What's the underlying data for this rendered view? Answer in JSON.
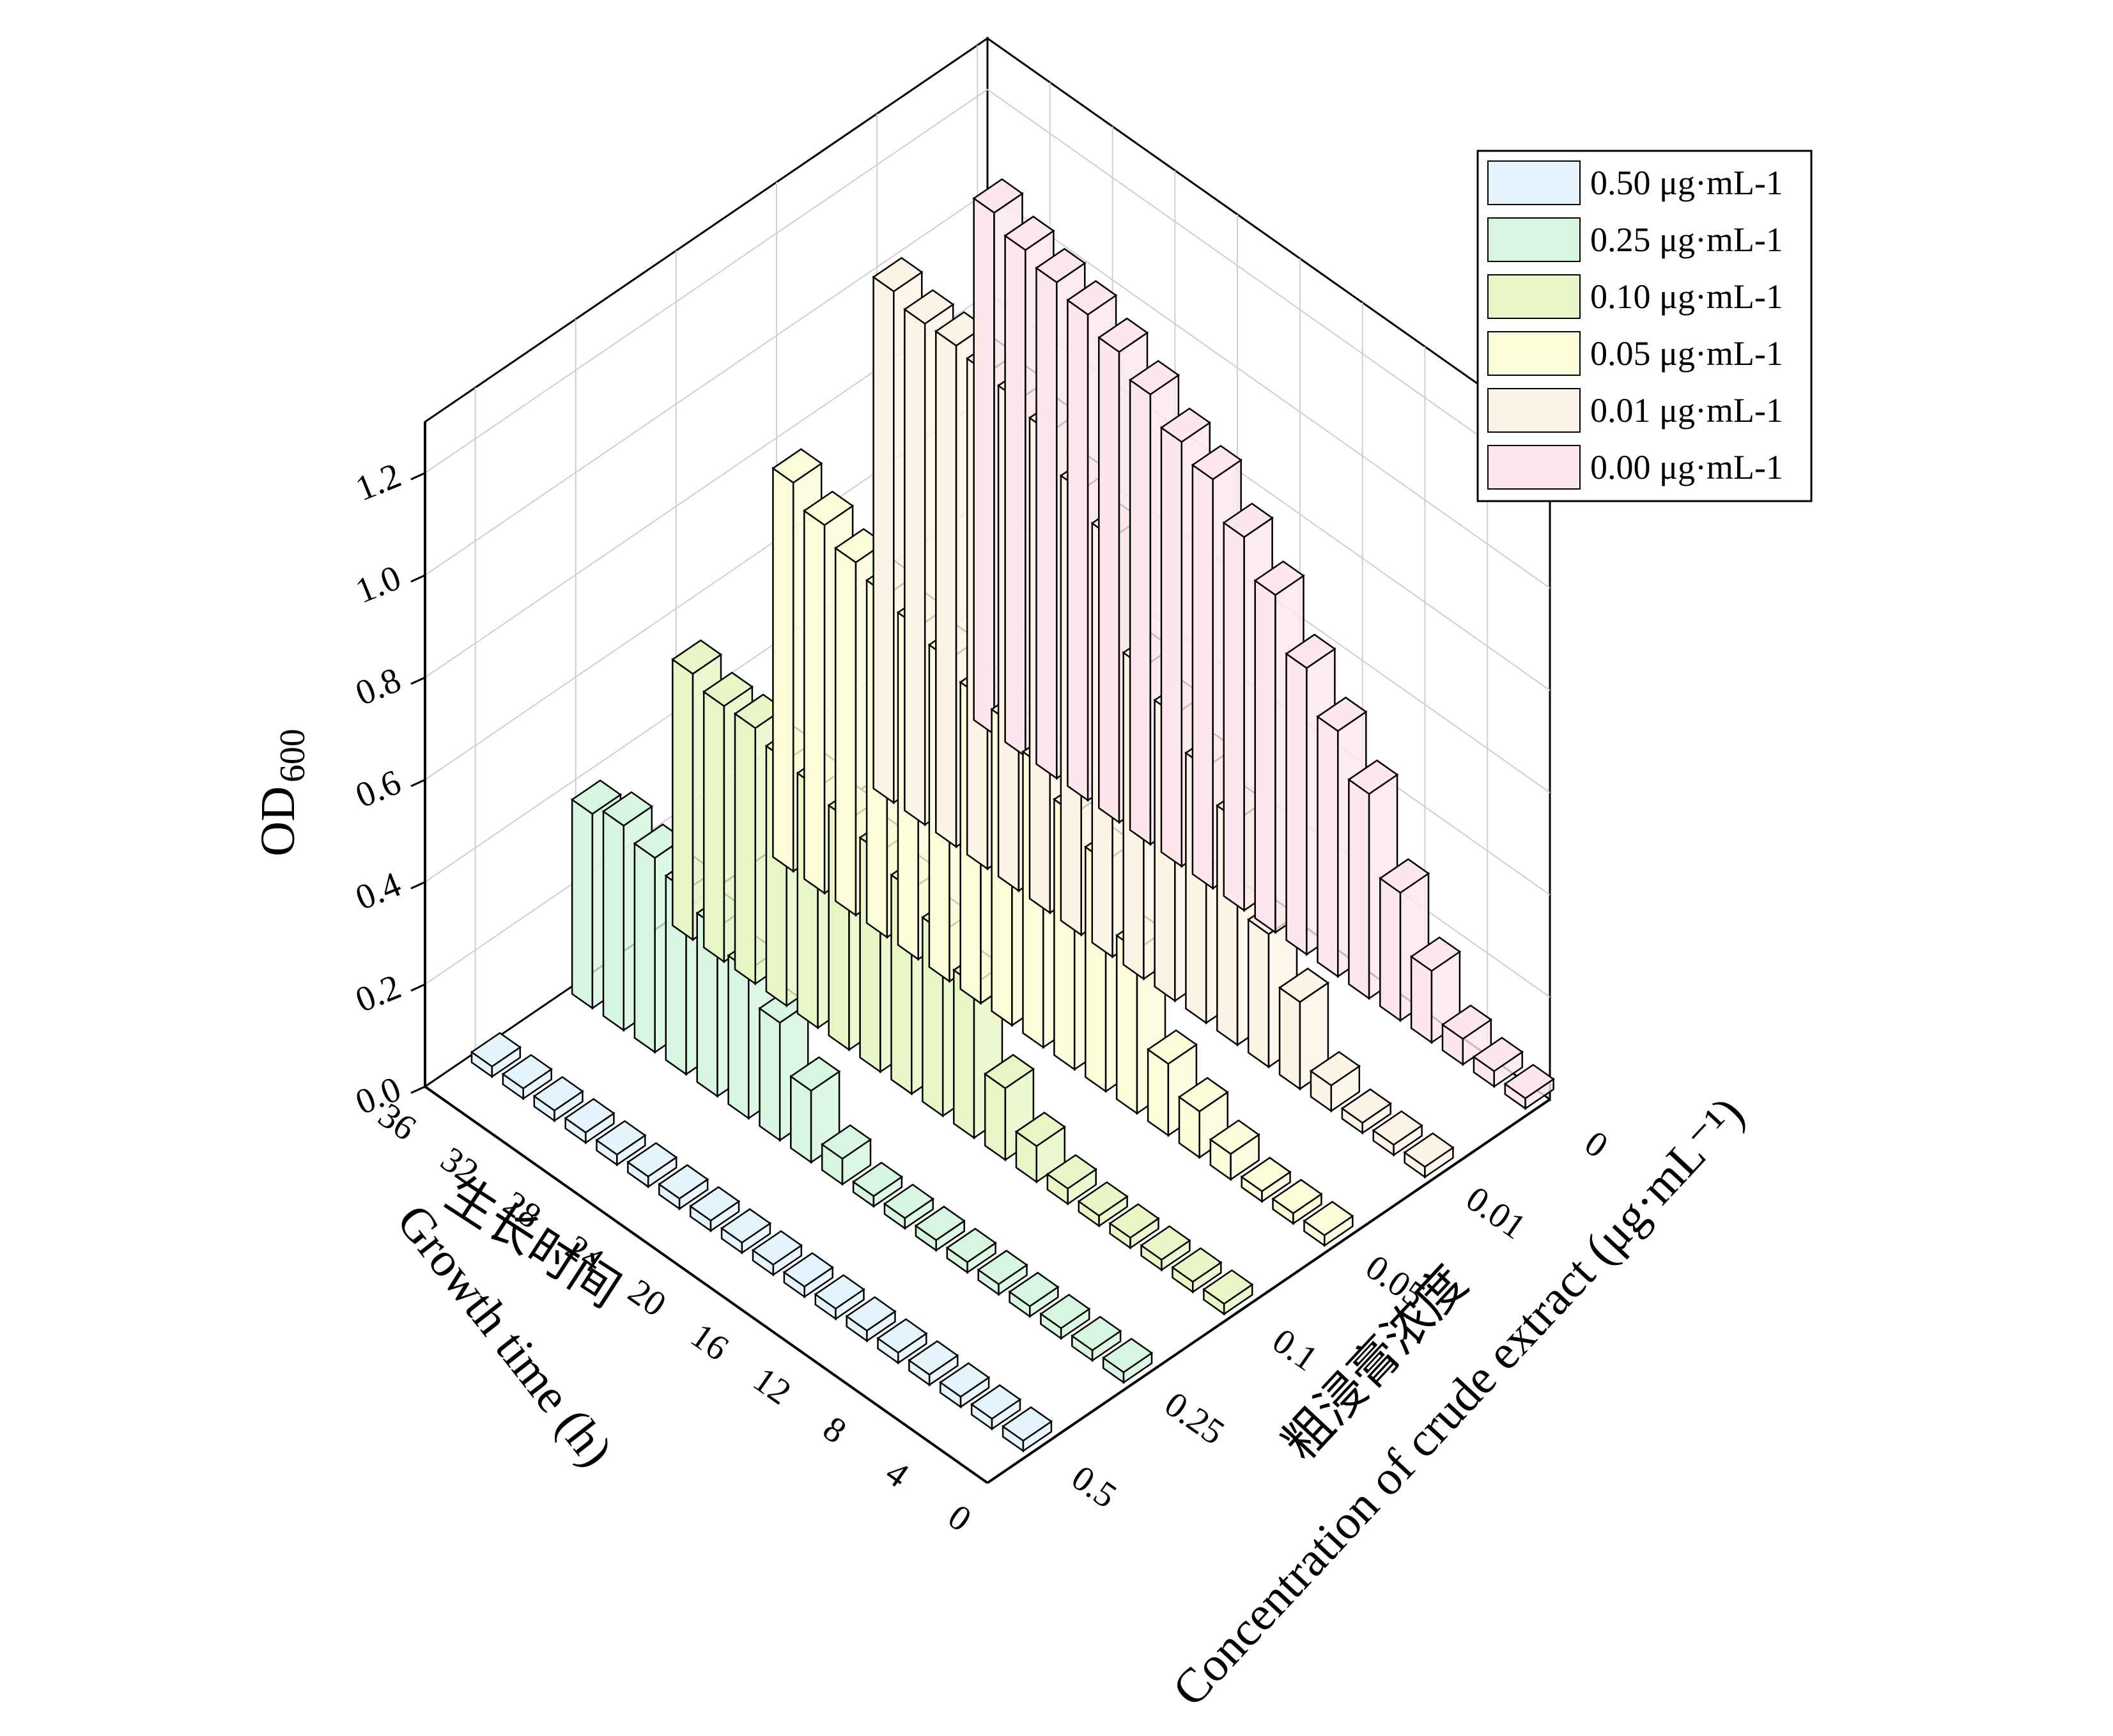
{
  "chart_data": {
    "type": "bar3d",
    "z_axis": {
      "label": "OD",
      "label_sub": "600",
      "ticks": [
        "0.0",
        "0.2",
        "0.4",
        "0.6",
        "0.8",
        "1.0",
        "1.2"
      ],
      "range": [
        0,
        1.3
      ]
    },
    "x_axis": {
      "label_cn": "生长时间",
      "label_en": "Growth time (h)",
      "ticks": [
        "0",
        "4",
        "8",
        "12",
        "16",
        "20",
        "24",
        "28",
        "32",
        "36"
      ],
      "range": [
        0,
        36
      ]
    },
    "y_axis": {
      "label_cn": "粗浸膏浓度",
      "label_en": "Concentration of crude extract (μg·mL⁻¹)",
      "ticks": [
        "0.5",
        "0.25",
        "0.1",
        "0.05",
        "0.01",
        "0"
      ]
    },
    "x": [
      0,
      2,
      4,
      6,
      8,
      10,
      12,
      14,
      16,
      18,
      20,
      22,
      24,
      26,
      28,
      30,
      32,
      34
    ],
    "series": [
      {
        "name": "0.50 μg·mL-1",
        "color": "#e4f4fc",
        "values": [
          0.02,
          0.02,
          0.02,
          0.02,
          0.02,
          0.02,
          0.02,
          0.02,
          0.02,
          0.02,
          0.02,
          0.02,
          0.02,
          0.02,
          0.02,
          0.02,
          0.02,
          0.02
        ]
      },
      {
        "name": "0.25 μg·mL-1",
        "color": "#d6f6e0",
        "values": [
          0.02,
          0.02,
          0.02,
          0.02,
          0.02,
          0.02,
          0.02,
          0.02,
          0.02,
          0.05,
          0.14,
          0.23,
          0.29,
          0.33,
          0.36,
          0.38,
          0.4,
          0.38
        ]
      },
      {
        "name": "0.10 μg·mL-1",
        "color": "#e8f6c6",
        "values": [
          0.02,
          0.02,
          0.02,
          0.02,
          0.02,
          0.03,
          0.07,
          0.14,
          0.3,
          0.36,
          0.4,
          0.43,
          0.45,
          0.47,
          0.48,
          0.5,
          0.5,
          0.52
        ]
      },
      {
        "name": "0.05 μg·mL-1",
        "color": "#fbfcd8",
        "values": [
          0.02,
          0.02,
          0.02,
          0.05,
          0.09,
          0.14,
          0.32,
          0.45,
          0.5,
          0.55,
          0.59,
          0.6,
          0.63,
          0.65,
          0.67,
          0.69,
          0.72,
          0.76
        ]
      },
      {
        "name": "0.01 μg·mL-1",
        "color": "#fdf4e6",
        "values": [
          0.02,
          0.02,
          0.02,
          0.05,
          0.17,
          0.26,
          0.44,
          0.5,
          0.56,
          0.61,
          0.82,
          0.87,
          0.94,
          0.96,
          0.97,
          0.98,
          0.98,
          1.0
        ]
      },
      {
        "name": "0.00 μg·mL-1",
        "color": "#fde6ec",
        "values": [
          0.02,
          0.03,
          0.05,
          0.14,
          0.25,
          0.4,
          0.48,
          0.56,
          0.66,
          0.73,
          0.8,
          0.83,
          0.88,
          0.92,
          0.95,
          0.97,
          0.99,
          1.02
        ]
      }
    ],
    "grid": true,
    "legend": "top-right"
  }
}
